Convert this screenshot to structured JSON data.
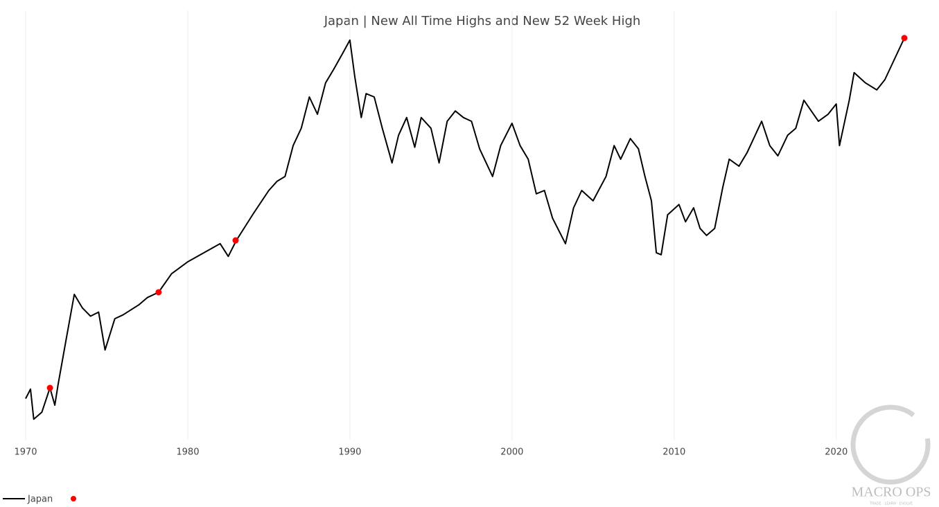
{
  "chart_data": {
    "type": "line",
    "title": "Japan | New All Time Highs and New 52 Week High",
    "xlim": [
      1970,
      2024.2
    ],
    "xticks": [
      1970,
      1980,
      1990,
      2000,
      2010,
      2020
    ],
    "ylim": [
      0,
      100
    ],
    "grid": true,
    "series": [
      {
        "name": "Japan",
        "color": "#000000",
        "x": [
          1970.0,
          1970.3,
          1970.5,
          1971.0,
          1971.5,
          1971.8,
          1972.0,
          1972.5,
          1973.0,
          1973.5,
          1974.0,
          1974.5,
          1974.9,
          1975.5,
          1976.0,
          1977.0,
          1977.5,
          1978.2,
          1979.0,
          1980.0,
          1981.0,
          1982.0,
          1982.5,
          1983.0,
          1984.0,
          1985.0,
          1985.5,
          1986.0,
          1986.5,
          1987.0,
          1987.5,
          1988.0,
          1988.5,
          1989.0,
          1989.6,
          1990.0,
          1990.3,
          1990.7,
          1991.0,
          1991.5,
          1992.0,
          1992.6,
          1993.0,
          1993.5,
          1994.0,
          1994.4,
          1995.0,
          1995.5,
          1996.0,
          1996.5,
          1997.0,
          1997.5,
          1998.0,
          1998.8,
          1999.3,
          2000.0,
          2000.5,
          2001.0,
          2001.5,
          2002.0,
          2002.5,
          2003.3,
          2003.8,
          2004.3,
          2005.0,
          2005.8,
          2006.3,
          2006.7,
          2007.3,
          2007.8,
          2008.2,
          2008.6,
          2008.9,
          2009.2,
          2009.6,
          2010.3,
          2010.7,
          2011.2,
          2011.6,
          2012.0,
          2012.5,
          2013.0,
          2013.4,
          2014.0,
          2014.5,
          2015.4,
          2015.9,
          2016.4,
          2017.0,
          2017.5,
          2018.0,
          2018.9,
          2019.5,
          2020.0,
          2020.2,
          2020.8,
          2021.1,
          2021.8,
          2022.5,
          2023.0,
          2023.5,
          2024.2
        ],
        "values": [
          10,
          12.3,
          5,
          6.7,
          12.6,
          8.4,
          13.4,
          24.4,
          35.3,
          32,
          30,
          31,
          21.8,
          29.4,
          30.3,
          32.8,
          34.5,
          35.8,
          40.3,
          43.2,
          45.4,
          47.6,
          44.5,
          48.4,
          54.6,
          60.5,
          62.7,
          63.9,
          71.4,
          75.6,
          83.2,
          79,
          86.6,
          89.9,
          94.1,
          97,
          88.2,
          78.2,
          84,
          83.2,
          75.6,
          67.2,
          73.9,
          78.2,
          71,
          78.2,
          75.6,
          67.2,
          77.3,
          79.8,
          78.2,
          77.3,
          70.6,
          63.9,
          71.4,
          76.8,
          71.4,
          68.1,
          59.7,
          60.5,
          53.8,
          47.6,
          56.3,
          60.5,
          58,
          63.9,
          71.4,
          68.1,
          73.1,
          70.6,
          63.9,
          58,
          45.4,
          44.9,
          54.6,
          57.1,
          52.9,
          56.3,
          51.3,
          49.6,
          51.3,
          61.3,
          68.1,
          66.4,
          69.7,
          77.3,
          71.4,
          68.9,
          73.9,
          75.6,
          82.4,
          77.3,
          79,
          81.5,
          71.4,
          82.4,
          89.1,
          86.6,
          84.9,
          87.4,
          91.6,
          97.5
        ]
      },
      {
        "color": "#ff0000",
        "x": [
          1971.5,
          1978.2,
          1982.95,
          2024.2
        ],
        "values": [
          12.6,
          35.8,
          48.4,
          97.5
        ]
      }
    ],
    "watermark": {
      "brand": "MACRO OPS",
      "tagline": "TRADE · LEARN · EVOLVE"
    }
  }
}
